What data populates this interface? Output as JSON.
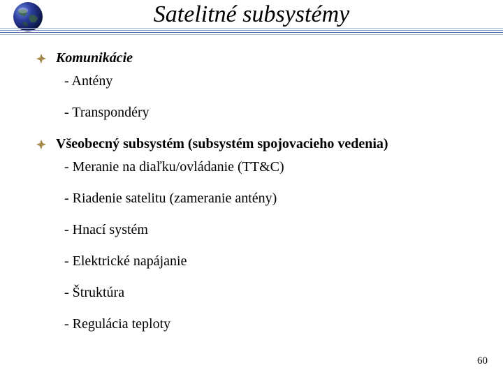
{
  "title": "Satelitné subsystémy",
  "rules": {
    "colors": [
      "#a8b8d8",
      "#7a90c0",
      "#5870a8",
      "#a8b8d8"
    ],
    "positions": [
      40,
      43,
      46,
      49
    ]
  },
  "globe": {
    "base": "#1a2a6a",
    "light": "#4868c8",
    "land": "#3a5a2a"
  },
  "bullet": {
    "fill": "#b89a5a",
    "dark": "#7a6030"
  },
  "sections": [
    {
      "head": "Komunikácie",
      "italic": true,
      "items": [
        "- Antény",
        "- Transpondéry"
      ]
    },
    {
      "head": "Všeobecný subsystém (subsystém spojovacieho vedenia)",
      "italic": false,
      "items": [
        "- Meranie na diaľku/ovládanie (TT&C)",
        "- Riadenie satelitu (zameranie antény)",
        "- Hnací systém",
        "- Elektrické napájanie",
        "- Štruktúra",
        "- Regulácia teploty"
      ]
    }
  ],
  "pageNumber": "60"
}
